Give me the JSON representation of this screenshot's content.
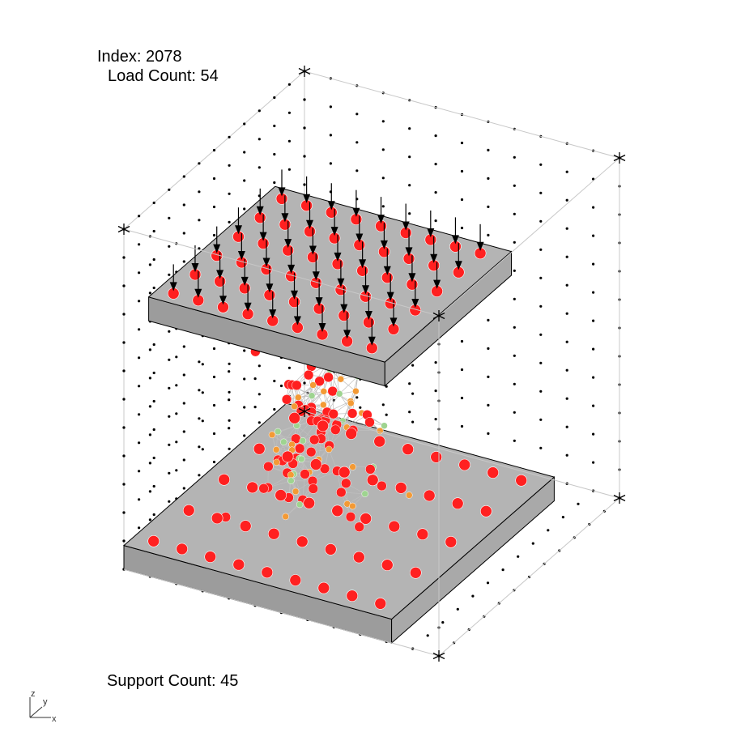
{
  "hud": {
    "index": "Index: 2078",
    "load_count": "Load Count: 54",
    "support_count": "Support Count: 45"
  },
  "axes": {
    "x_label": "x",
    "y_label": "y",
    "z_label": "z"
  },
  "colors": {
    "node_high": "#ff2020",
    "node_mid": "#f39a35",
    "node_low": "#9ed490",
    "plate_fill": "#b4b4b4",
    "wire": "#bfbfbf",
    "box_edge": "#c8c8c8",
    "load_arrow": "#000000",
    "grid_dot": "#000000"
  }
}
